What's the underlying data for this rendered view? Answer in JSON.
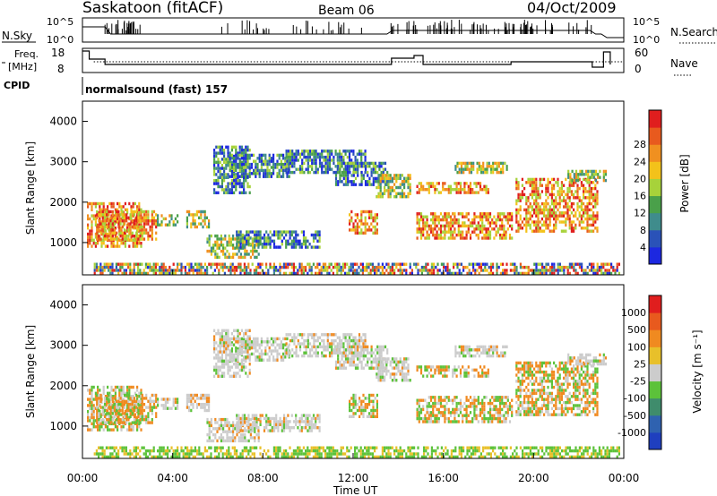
{
  "header": {
    "station": "Saskatoon (fitACF)",
    "beam": "Beam 06",
    "date": "04/Oct/2009"
  },
  "top_panels": {
    "nsky_label": "N.Sky",
    "nsky_ticks": [
      "10^5",
      "10^0"
    ],
    "nsearch_label": "N.Search",
    "nsearch_ticks": [
      "10^5",
      "10^0"
    ],
    "freq_label_1": "Freq.",
    "freq_label_2": "[MHz]",
    "freq_ticks": [
      "18",
      "8"
    ],
    "nave_label": "Nave",
    "nave_ticks": [
      "60",
      "0"
    ],
    "cpid_label": "CPID",
    "cpid_value": "normalsound (fast) 157"
  },
  "chart_data": [
    {
      "type": "heatmap",
      "name": "power",
      "ylabel": "Slant Range [km]",
      "yticks": [
        "1000",
        "2000",
        "3000",
        "4000"
      ],
      "ylim": [
        200,
        4500
      ],
      "xlim_hours": [
        0,
        24
      ],
      "colorbar_label": "Power [dB]",
      "colorbar_ticks": [
        "4",
        "8",
        "12",
        "16",
        "20",
        "24",
        "28"
      ],
      "colorbar_colors": [
        "#1c28e0",
        "#2a52b8",
        "#3f8c8c",
        "#4aa04a",
        "#a7d23a",
        "#f3c21a",
        "#f09020",
        "#e85a1e",
        "#e01e1e"
      ]
    },
    {
      "type": "heatmap",
      "name": "velocity",
      "ylabel": "Slant Range [km]",
      "yticks": [
        "1000",
        "2000",
        "3000",
        "4000"
      ],
      "ylim": [
        200,
        4500
      ],
      "xlim_hours": [
        0,
        24
      ],
      "colorbar_label": "Velocity [m s⁻¹]",
      "colorbar_ticks": [
        "1000",
        "500",
        "100",
        "25",
        "-25",
        "-100",
        "-500",
        "-1000"
      ],
      "colorbar_colors": [
        "#1f3fbf",
        "#2f62b0",
        "#3f8c6c",
        "#5cc23a",
        "#cccccc",
        "#e8c02a",
        "#f08a20",
        "#e85a1e",
        "#e01e1e"
      ]
    }
  ],
  "x_axis": {
    "ticks": [
      "00:00",
      "04:00",
      "08:00",
      "12:00",
      "16:00",
      "20:00",
      "00:00"
    ],
    "label": "Time UT"
  }
}
